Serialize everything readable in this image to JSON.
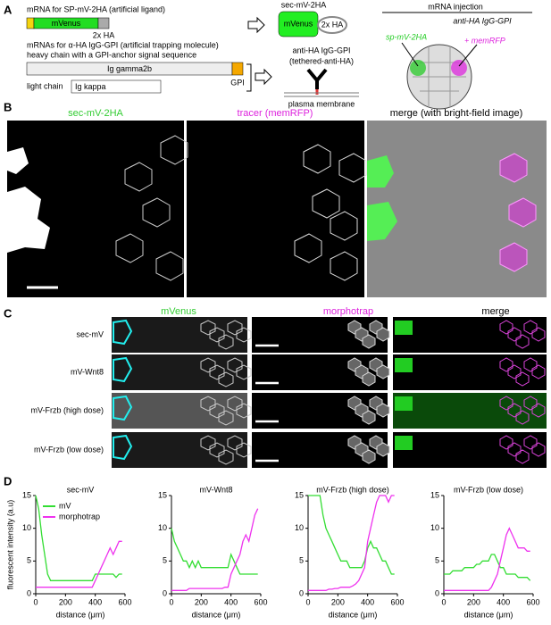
{
  "panel_a": {
    "label": "A",
    "mrna_ligand": "mRNA for SP-mV-2HA (artificial ligand)",
    "mvenus": "mVenus",
    "ha": "2x HA",
    "mrna_trap": "mRNAs for α-HA IgG-GPI (artificial trapping molecule)",
    "heavy_chain": "heavy chain with a GPI-anchor signal sequence",
    "ig_gamma": "Ig gamma2b",
    "gpi": "GPI",
    "light_chain": "light chain",
    "ig_kappa": "Ig kappa",
    "sec_title": "sec-mV-2HA",
    "sec_mvenus": "mVenus",
    "sec_ha": "2x HA",
    "anti_ha": "anti-HA IgG-GPI",
    "tethered": "(tethered-anti-HA)",
    "membrane": "plasma membrane",
    "injection": "mRNA injection",
    "inj_anti_ha": "anti-HA IgG-GPI",
    "inj_sp": "sp-mV-2HA",
    "inj_memrfp": "+ memRFP"
  },
  "panel_b": {
    "label": "B",
    "headings": [
      "sec-mV-2HA",
      "tracer (memRFP)",
      "merge (with bright-field image)"
    ]
  },
  "panel_c": {
    "label": "C",
    "headings": [
      "mVenus",
      "morphotrap",
      "merge"
    ],
    "rows": [
      "sec-mV",
      "mV-Wnt8",
      "mV-Frzb (high dose)",
      "mV-Frzb (low dose)"
    ]
  },
  "panel_d": {
    "label": "D"
  },
  "chart_data": [
    {
      "type": "line",
      "title": "sec-mV",
      "y_label": "fluorescent intensity (a.u)",
      "x_label": "distance (μm)",
      "legend": true,
      "x": [
        0,
        20,
        40,
        60,
        80,
        100,
        120,
        140,
        160,
        180,
        200,
        220,
        240,
        260,
        280,
        300,
        320,
        340,
        360,
        380,
        400,
        420,
        440,
        460,
        480,
        500,
        520,
        540,
        560,
        580
      ],
      "xlim": [
        0,
        600
      ],
      "xticks": [
        0,
        200,
        400,
        600
      ],
      "ylim": [
        0,
        15
      ],
      "yticks": [
        0,
        5,
        10,
        15
      ],
      "series": [
        {
          "name": "mV",
          "color": "#33dd33",
          "values": [
            15,
            13,
            9,
            6,
            3,
            2,
            2,
            2,
            2,
            2,
            2,
            2,
            2,
            2,
            2,
            2,
            2,
            2,
            2,
            2,
            3,
            3,
            3,
            3,
            3,
            3,
            3,
            2.5,
            3,
            3
          ]
        },
        {
          "name": "morphotrap",
          "color": "#ee33ee",
          "values": [
            1,
            1,
            1,
            1,
            1,
            1,
            1,
            1,
            1,
            1,
            1,
            1,
            1,
            1,
            1,
            1,
            1,
            1,
            1,
            1,
            2,
            3,
            4,
            5,
            6,
            7,
            6,
            7,
            8,
            8
          ]
        }
      ]
    },
    {
      "type": "line",
      "title": "mV-Wnt8",
      "x_label": "distance (μm)",
      "legend": false,
      "x": [
        0,
        20,
        40,
        60,
        80,
        100,
        120,
        140,
        160,
        180,
        200,
        220,
        240,
        260,
        280,
        300,
        320,
        340,
        360,
        380,
        400,
        420,
        440,
        460,
        480,
        500,
        520,
        540,
        560,
        580
      ],
      "xlim": [
        0,
        600
      ],
      "xticks": [
        0,
        200,
        400,
        600
      ],
      "ylim": [
        0,
        15
      ],
      "yticks": [
        0,
        5,
        10,
        15
      ],
      "series": [
        {
          "color": "#33dd33",
          "values": [
            10,
            8,
            7,
            6,
            5,
            5,
            4,
            5,
            4,
            5,
            4,
            4,
            4,
            4,
            4,
            4,
            4,
            4,
            4,
            4,
            6,
            5,
            4,
            3,
            3,
            3,
            3,
            3,
            3,
            3
          ]
        },
        {
          "color": "#ee33ee",
          "values": [
            0.5,
            0.5,
            0.5,
            0.5,
            0.5,
            0.5,
            0.8,
            0.8,
            0.8,
            0.8,
            0.8,
            0.8,
            0.8,
            0.8,
            0.8,
            0.8,
            0.8,
            0.8,
            1,
            1,
            3,
            4,
            5,
            6,
            8,
            9,
            8,
            10,
            12,
            13
          ]
        }
      ]
    },
    {
      "type": "line",
      "title": "mV-Frzb (high dose)",
      "x_label": "distance (μm)",
      "legend": false,
      "x": [
        0,
        20,
        40,
        60,
        80,
        100,
        120,
        140,
        160,
        180,
        200,
        220,
        240,
        260,
        280,
        300,
        320,
        340,
        360,
        380,
        400,
        420,
        440,
        460,
        480,
        500,
        520,
        540,
        560,
        580
      ],
      "xlim": [
        0,
        600
      ],
      "xticks": [
        0,
        200,
        400,
        600
      ],
      "ylim": [
        0,
        15
      ],
      "yticks": [
        0,
        5,
        10,
        15
      ],
      "series": [
        {
          "color": "#33dd33",
          "values": [
            15,
            15,
            15,
            15,
            15,
            12,
            10,
            9,
            8,
            7,
            6,
            5,
            5,
            5,
            4,
            4,
            4,
            4,
            4,
            5,
            7,
            8,
            7,
            7,
            6,
            5,
            5,
            4,
            3,
            3
          ]
        },
        {
          "color": "#ee33ee",
          "values": [
            0.5,
            0.5,
            0.5,
            0.5,
            0.5,
            0.5,
            0.5,
            0.7,
            0.7,
            0.8,
            0.8,
            1,
            1,
            1,
            1,
            1.2,
            1.5,
            2,
            3,
            4,
            8,
            10,
            12,
            14,
            15,
            15,
            15,
            14,
            15,
            15
          ]
        }
      ]
    },
    {
      "type": "line",
      "title": "mV-Frzb (low dose)",
      "x_label": "distance (μm)",
      "legend": false,
      "x": [
        0,
        20,
        40,
        60,
        80,
        100,
        120,
        140,
        160,
        180,
        200,
        220,
        240,
        260,
        280,
        300,
        320,
        340,
        360,
        380,
        400,
        420,
        440,
        460,
        480,
        500,
        520,
        540,
        560,
        580
      ],
      "xlim": [
        0,
        600
      ],
      "xticks": [
        0,
        200,
        400,
        600
      ],
      "ylim": [
        0,
        15
      ],
      "yticks": [
        0,
        5,
        10,
        15
      ],
      "series": [
        {
          "color": "#33dd33",
          "values": [
            3,
            3,
            3,
            3.5,
            3.5,
            3.5,
            3.5,
            4,
            4,
            4,
            4,
            4.5,
            4.5,
            5,
            5,
            5,
            6,
            6,
            5,
            4,
            4,
            3,
            3,
            3,
            3,
            2.5,
            2.5,
            2.5,
            2.5,
            2
          ]
        },
        {
          "color": "#ee33ee",
          "values": [
            0.5,
            0.5,
            0.5,
            0.5,
            0.5,
            0.5,
            0.5,
            0.5,
            0.5,
            0.5,
            0.5,
            0.5,
            0.5,
            0.5,
            0.5,
            0.5,
            1,
            2,
            3,
            5,
            7,
            9,
            10,
            9,
            8,
            7,
            7,
            7,
            6.5,
            6.5
          ]
        }
      ]
    }
  ]
}
